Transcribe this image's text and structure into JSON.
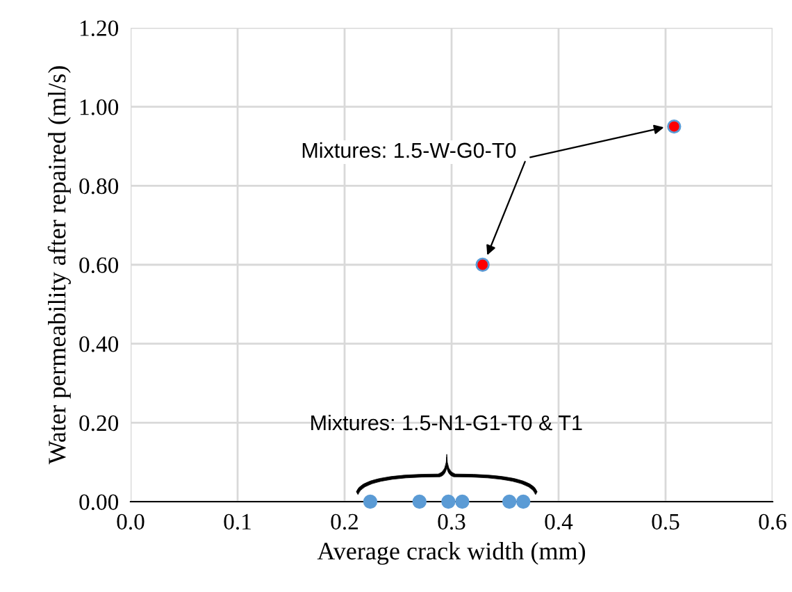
{
  "chart_data": {
    "type": "scatter",
    "xlabel": "Average crack width (mm)",
    "ylabel": "Water permeability after repaired (ml/s)",
    "series": [
      {
        "color": "#5b9bd5",
        "x": [
          0.224,
          0.27,
          0.297,
          0.31,
          0.354,
          0.367
        ],
        "values": [
          0,
          0,
          0,
          0,
          0,
          0
        ]
      },
      {
        "color": "#ff0000",
        "x": [
          0.329,
          0.508
        ],
        "values": [
          0.6,
          0.95
        ]
      }
    ],
    "annotations": [
      {
        "text": "Mixtures: 1.5-W-G0-T0",
        "x": 0.329,
        "y": 0.6
      },
      "Mixtures: 1.5-N1-G1-T0 & T1"
    ],
    "xlim": [
      0,
      0.6
    ],
    "xticks": [
      {
        "value": 0,
        "label": "0.0"
      },
      0.1,
      0.2,
      0.3,
      0.4,
      0.5,
      0.6
    ],
    "ylim": [
      0,
      1.2
    ],
    "yticks": [
      {
        "value": 0,
        "label": "0.00"
      },
      {
        "value": 0.2,
        "label": "0.20"
      },
      {
        "value": 0.4,
        "label": "0.40"
      },
      {
        "value": 0.6,
        "label": "0.60"
      },
      {
        "value": 0.8,
        "label": "0.80"
      },
      {
        "value": 1.0,
        "label": "1.00"
      },
      {
        "value": 1.2,
        "label": "1.20"
      }
    ],
    "grid": true,
    "marker": "circle"
  }
}
